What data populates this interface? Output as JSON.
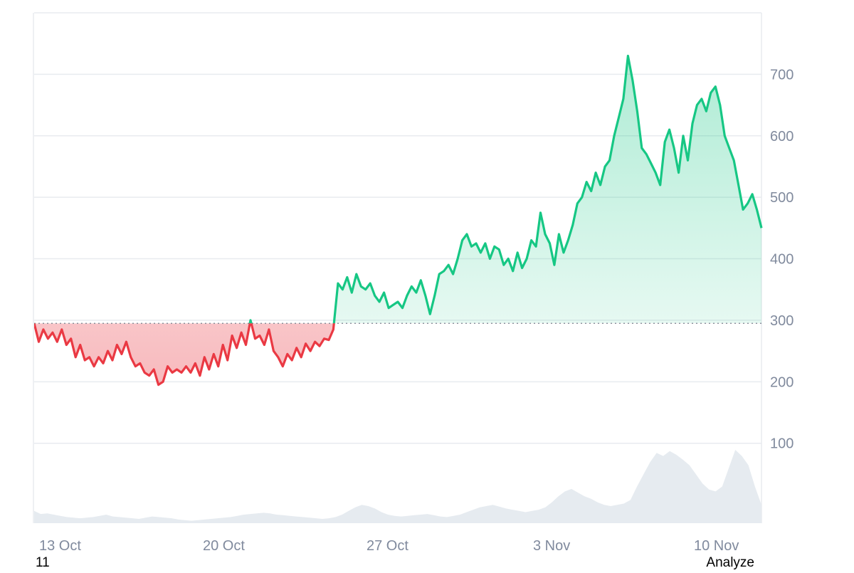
{
  "chart_data": {
    "type": "line",
    "baseline": 295,
    "y_ticks": [
      100,
      200,
      300,
      400,
      500,
      600,
      700
    ],
    "ylim": [
      -30,
      800
    ],
    "x_ticks": [
      "13 Oct",
      "20 Oct",
      "27 Oct",
      "3 Nov",
      "10 Nov"
    ],
    "grid": true,
    "series": [
      {
        "values": [
          295,
          265,
          285,
          270,
          280,
          265,
          285,
          260,
          270,
          240,
          260,
          235,
          240,
          225,
          240,
          230,
          250,
          235,
          260,
          245,
          265,
          240,
          225,
          230,
          215,
          210,
          220,
          195,
          200,
          225,
          215,
          220,
          215,
          225,
          215,
          230,
          210,
          240,
          220,
          245,
          225,
          260,
          235,
          275,
          255,
          280,
          260,
          300,
          270,
          275,
          260,
          285,
          250,
          240,
          225,
          245,
          235,
          255,
          240,
          262,
          250,
          265,
          258,
          270,
          268,
          285,
          360,
          350,
          370,
          345,
          375,
          355,
          350,
          360,
          340,
          330,
          345,
          320,
          325,
          330,
          320,
          340,
          355,
          345,
          365,
          340,
          310,
          340,
          375,
          380,
          390,
          375,
          400,
          430,
          440,
          420,
          425,
          410,
          425,
          400,
          420,
          415,
          390,
          400,
          380,
          410,
          385,
          400,
          430,
          420,
          475,
          440,
          425,
          390,
          440,
          410,
          430,
          455,
          490,
          500,
          525,
          510,
          540,
          520,
          550,
          560,
          600,
          630,
          660,
          730,
          690,
          640,
          580,
          570,
          555,
          540,
          520,
          590,
          610,
          580,
          540,
          600,
          560,
          620,
          650,
          660,
          640,
          670,
          680,
          650,
          600,
          580,
          560,
          520,
          480,
          490,
          505,
          480,
          450
        ]
      }
    ],
    "volume": [
      20,
      15,
      16,
      14,
      12,
      10,
      9,
      8,
      9,
      10,
      12,
      14,
      11,
      10,
      9,
      8,
      7,
      9,
      11,
      10,
      9,
      8,
      6,
      5,
      4,
      5,
      6,
      7,
      8,
      9,
      10,
      12,
      14,
      15,
      16,
      17,
      16,
      14,
      13,
      12,
      11,
      10,
      9,
      8,
      7,
      8,
      10,
      14,
      20,
      26,
      30,
      28,
      24,
      18,
      14,
      12,
      11,
      12,
      13,
      14,
      15,
      13,
      11,
      10,
      12,
      14,
      18,
      22,
      26,
      28,
      30,
      27,
      24,
      22,
      20,
      18,
      20,
      22,
      26,
      34,
      44,
      52,
      56,
      50,
      44,
      40,
      34,
      30,
      28,
      30,
      32,
      38,
      60,
      80,
      100,
      115,
      110,
      118,
      112,
      104,
      95,
      80,
      65,
      55,
      52,
      60,
      90,
      120,
      110,
      95,
      60,
      30
    ]
  },
  "footer": {
    "left_text": "11",
    "right_text": "Analyze"
  },
  "colors": {
    "up_line": "#16c784",
    "down_line": "#ea3943",
    "up_fill": "#16c784",
    "down_fill": "#ea3943",
    "volume": "#e6ebf0",
    "grid": "#e8ebef",
    "axis_text": "#808a9d",
    "baseline": "#7a8190"
  }
}
